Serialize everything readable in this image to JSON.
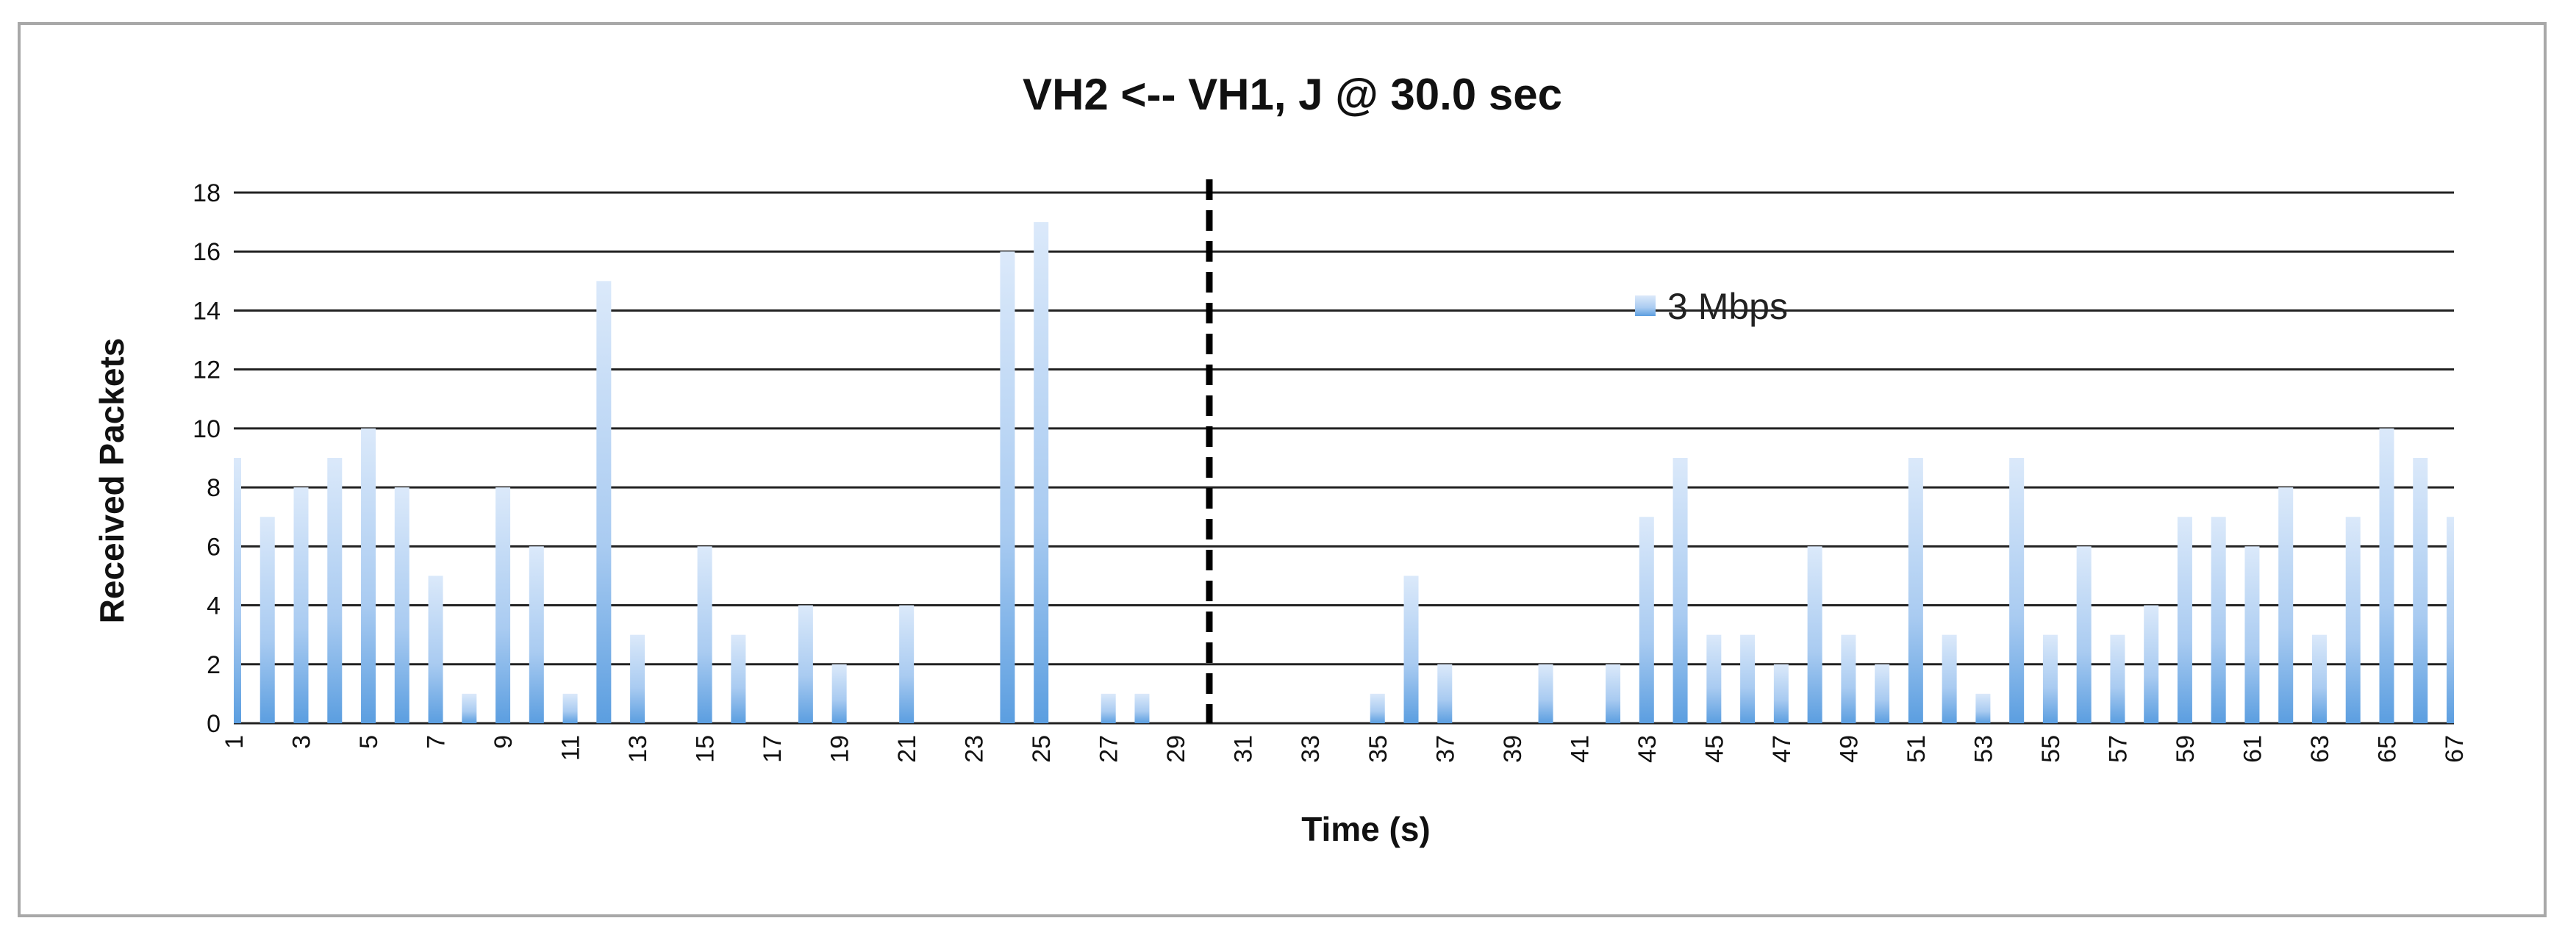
{
  "chart_data": {
    "type": "bar",
    "title": "VH2 <-- VH1, J @ 30.0 sec",
    "xlabel": "Time (s)",
    "ylabel": "Received Packets",
    "ylim": [
      0,
      18
    ],
    "yticks": [
      0,
      2,
      4,
      6,
      8,
      10,
      12,
      14,
      16,
      18
    ],
    "categories": [
      1,
      2,
      3,
      4,
      5,
      6,
      7,
      8,
      9,
      10,
      11,
      12,
      13,
      14,
      15,
      16,
      17,
      18,
      19,
      20,
      21,
      22,
      23,
      24,
      25,
      26,
      27,
      28,
      29,
      30,
      31,
      32,
      33,
      34,
      35,
      36,
      37,
      38,
      39,
      40,
      41,
      42,
      43,
      44,
      45,
      46,
      47,
      48,
      49,
      50,
      51,
      52,
      53,
      54,
      55,
      56,
      57,
      58,
      59,
      60,
      61,
      62,
      63,
      64,
      65,
      66,
      67
    ],
    "xtick_labels": [
      "1",
      "3",
      "5",
      "7",
      "9",
      "11",
      "13",
      "15",
      "17",
      "19",
      "21",
      "23",
      "25",
      "27",
      "29",
      "31",
      "33",
      "35",
      "37",
      "39",
      "41",
      "43",
      "45",
      "47",
      "49",
      "51",
      "53",
      "55",
      "57",
      "59",
      "61",
      "63",
      "65",
      "67"
    ],
    "series": [
      {
        "name": "3 Mbps",
        "values": [
          9,
          7,
          8,
          9,
          10,
          8,
          5,
          1,
          8,
          6,
          1,
          15,
          3,
          0,
          6,
          3,
          0,
          4,
          2,
          0,
          4,
          0,
          0,
          16,
          17,
          0,
          1,
          1,
          0,
          0,
          0,
          0,
          0,
          0,
          1,
          5,
          2,
          0,
          0,
          2,
          0,
          2,
          7,
          9,
          3,
          3,
          2,
          6,
          3,
          2,
          9,
          3,
          1,
          9,
          3,
          6,
          3,
          4,
          7,
          7,
          6,
          8,
          3,
          7,
          10,
          9,
          7
        ]
      }
    ],
    "marker_line": {
      "x": 30,
      "style": "dashed"
    },
    "grid": true,
    "legend_position": "top-right"
  },
  "colors": {
    "bar_light": "#d3e4f9",
    "bar_dark": "#5b9ee0",
    "grid": "#222222",
    "marker": "#000000"
  }
}
